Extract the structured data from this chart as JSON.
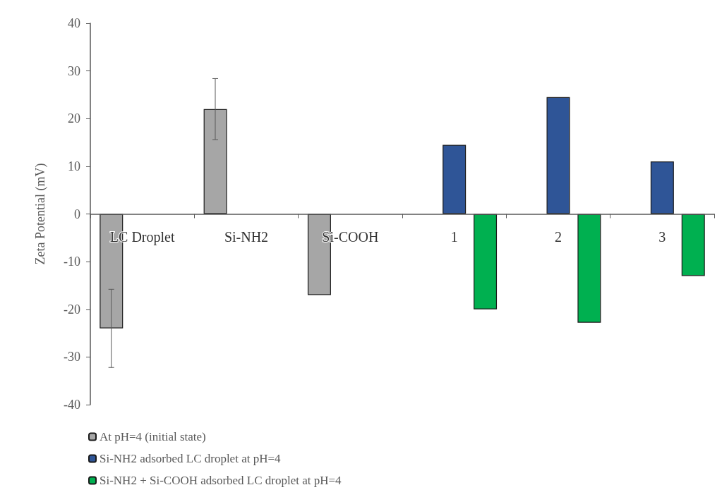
{
  "chart_data": {
    "type": "bar",
    "ylabel": "Zeta Potential (mV)",
    "categories": [
      "LC Droplet",
      "Si-NH2",
      "Si-COOH",
      "1",
      "2",
      "3"
    ],
    "series": [
      {
        "name": "At pH=4 (initial state)",
        "color": "#a6a6a6",
        "values": [
          -24,
          22,
          -17,
          null,
          null,
          null
        ],
        "errors": [
          8.2,
          6.4,
          null,
          null,
          null,
          null
        ]
      },
      {
        "name": "Si-NH2 adsorbed LC droplet at pH=4",
        "color": "#2f5597",
        "values": [
          null,
          null,
          null,
          14.5,
          24.5,
          11
        ]
      },
      {
        "name": "Si-NH2 + Si-COOH adsorbed LC droplet at pH=4",
        "color": "#00b050",
        "values": [
          null,
          null,
          null,
          -20,
          -22.8,
          -13
        ]
      }
    ],
    "ylim": [
      -40,
      40
    ],
    "yticks": [
      -40,
      -30,
      -20,
      -10,
      0,
      10,
      20,
      30,
      40
    ],
    "legend": "bottom"
  }
}
